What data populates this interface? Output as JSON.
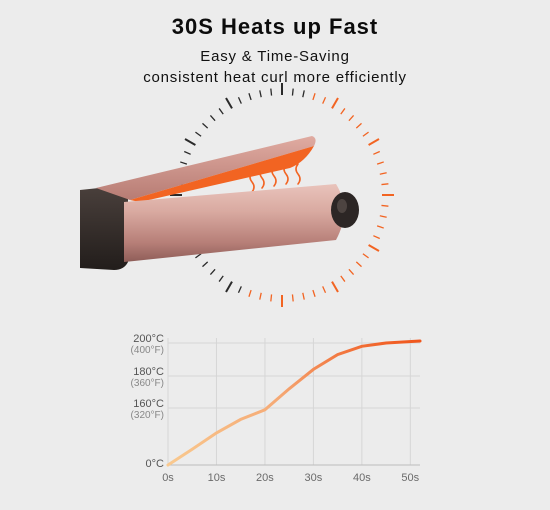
{
  "header": {
    "title": "30S Heats up Fast",
    "subtitle1": "Easy & Time-Saving",
    "subtitle2": "consistent heat  curl more efficiently"
  },
  "colors": {
    "orange": "#f26422",
    "barrel_rose": "#d4a39c",
    "handle_dark": "#3b3431",
    "curve_start": "#f7c48a",
    "curve_end": "#f06a22"
  },
  "chart_data": {
    "type": "line",
    "x": [
      0,
      10,
      20,
      30,
      40,
      50
    ],
    "x_tick_labels": [
      "0s",
      "10s",
      "20s",
      "30s",
      "40s",
      "50s"
    ],
    "y_ticks": [
      {
        "value": 0,
        "label": "0°C",
        "sub": ""
      },
      {
        "value": 160,
        "label": "160°C",
        "sub": "(320°F)"
      },
      {
        "value": 180,
        "label": "180°C",
        "sub": "(360°F)"
      },
      {
        "value": 200,
        "label": "200°C",
        "sub": "(400°F)"
      }
    ],
    "series": [
      {
        "x": [
          0,
          5,
          10,
          15,
          20,
          25,
          30,
          35,
          40,
          45,
          52
        ],
        "y": [
          0,
          44,
          90,
          128,
          155,
          172,
          184,
          193,
          198,
          200,
          201
        ]
      }
    ],
    "xlim": [
      0,
      52
    ],
    "grid": true
  }
}
